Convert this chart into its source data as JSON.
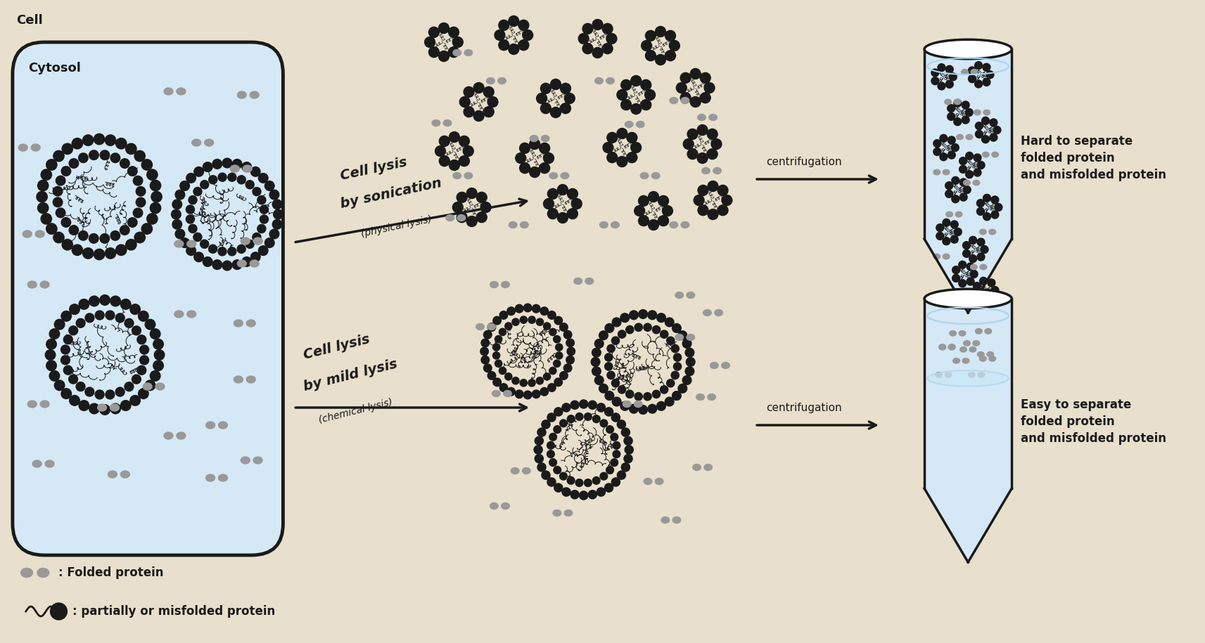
{
  "bg_color": "#e8e0cc",
  "cell_bg": "#d5e8f5",
  "cell_border": "#1a1a1a",
  "gray_color": "#999999",
  "black_color": "#1a1a1a",
  "tube_fill": "#d5e8f5",
  "tube_border": "#1a1a1a",
  "label_cell": "Cell",
  "label_cytosol": "Cytosol",
  "label_son1": "Cell lysis",
  "label_son2": "by sonication",
  "label_son3": "(physical lysis)",
  "label_mild1": "Cell lysis",
  "label_mild2": "by mild lysis",
  "label_mild3": "(chemical lysis)",
  "label_centrifugation": "centrifugation",
  "label_hard": "Hard to separate\nfolded protein\nand misfolded protein",
  "label_easy": "Easy to separate\nfolded protein\nand misfolded protein",
  "legend_folded": ": Folded protein",
  "legend_misfolded": ": partially or misfolded protein"
}
